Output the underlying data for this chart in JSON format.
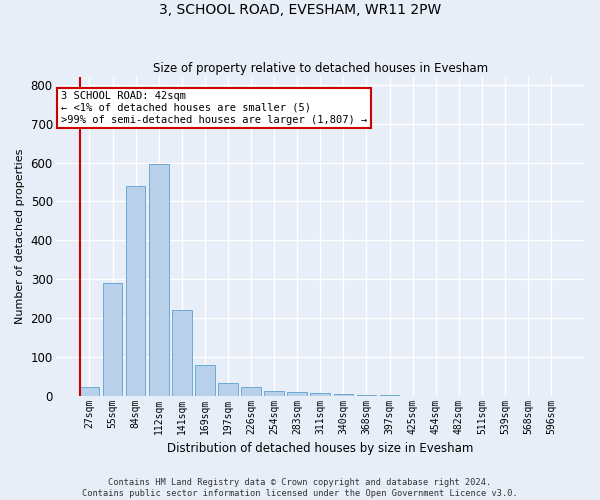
{
  "title": "3, SCHOOL ROAD, EVESHAM, WR11 2PW",
  "subtitle": "Size of property relative to detached houses in Evesham",
  "xlabel": "Distribution of detached houses by size in Evesham",
  "ylabel": "Number of detached properties",
  "footer_line1": "Contains HM Land Registry data © Crown copyright and database right 2024.",
  "footer_line2": "Contains public sector information licensed under the Open Government Licence v3.0.",
  "categories": [
    "27sqm",
    "55sqm",
    "84sqm",
    "112sqm",
    "141sqm",
    "169sqm",
    "197sqm",
    "226sqm",
    "254sqm",
    "283sqm",
    "311sqm",
    "340sqm",
    "368sqm",
    "397sqm",
    "425sqm",
    "454sqm",
    "482sqm",
    "511sqm",
    "539sqm",
    "568sqm",
    "596sqm"
  ],
  "values": [
    22,
    290,
    540,
    595,
    220,
    80,
    33,
    22,
    12,
    10,
    8,
    5,
    2,
    2,
    0,
    0,
    0,
    0,
    0,
    0,
    0
  ],
  "bar_color": "#b8d0ea",
  "bar_edge_color": "#6aaad4",
  "background_color": "#e8eef8",
  "grid_color": "#ffffff",
  "annotation_text": "3 SCHOOL ROAD: 42sqm\n← <1% of detached houses are smaller (5)\n>99% of semi-detached houses are larger (1,807) →",
  "annotation_box_color": "#ffffff",
  "annotation_box_edge_color": "#cc0000",
  "annotation_text_color": "#000000",
  "marker_line_color": "#cc0000",
  "ylim": [
    0,
    820
  ],
  "yticks": [
    0,
    100,
    200,
    300,
    400,
    500,
    600,
    700,
    800
  ]
}
